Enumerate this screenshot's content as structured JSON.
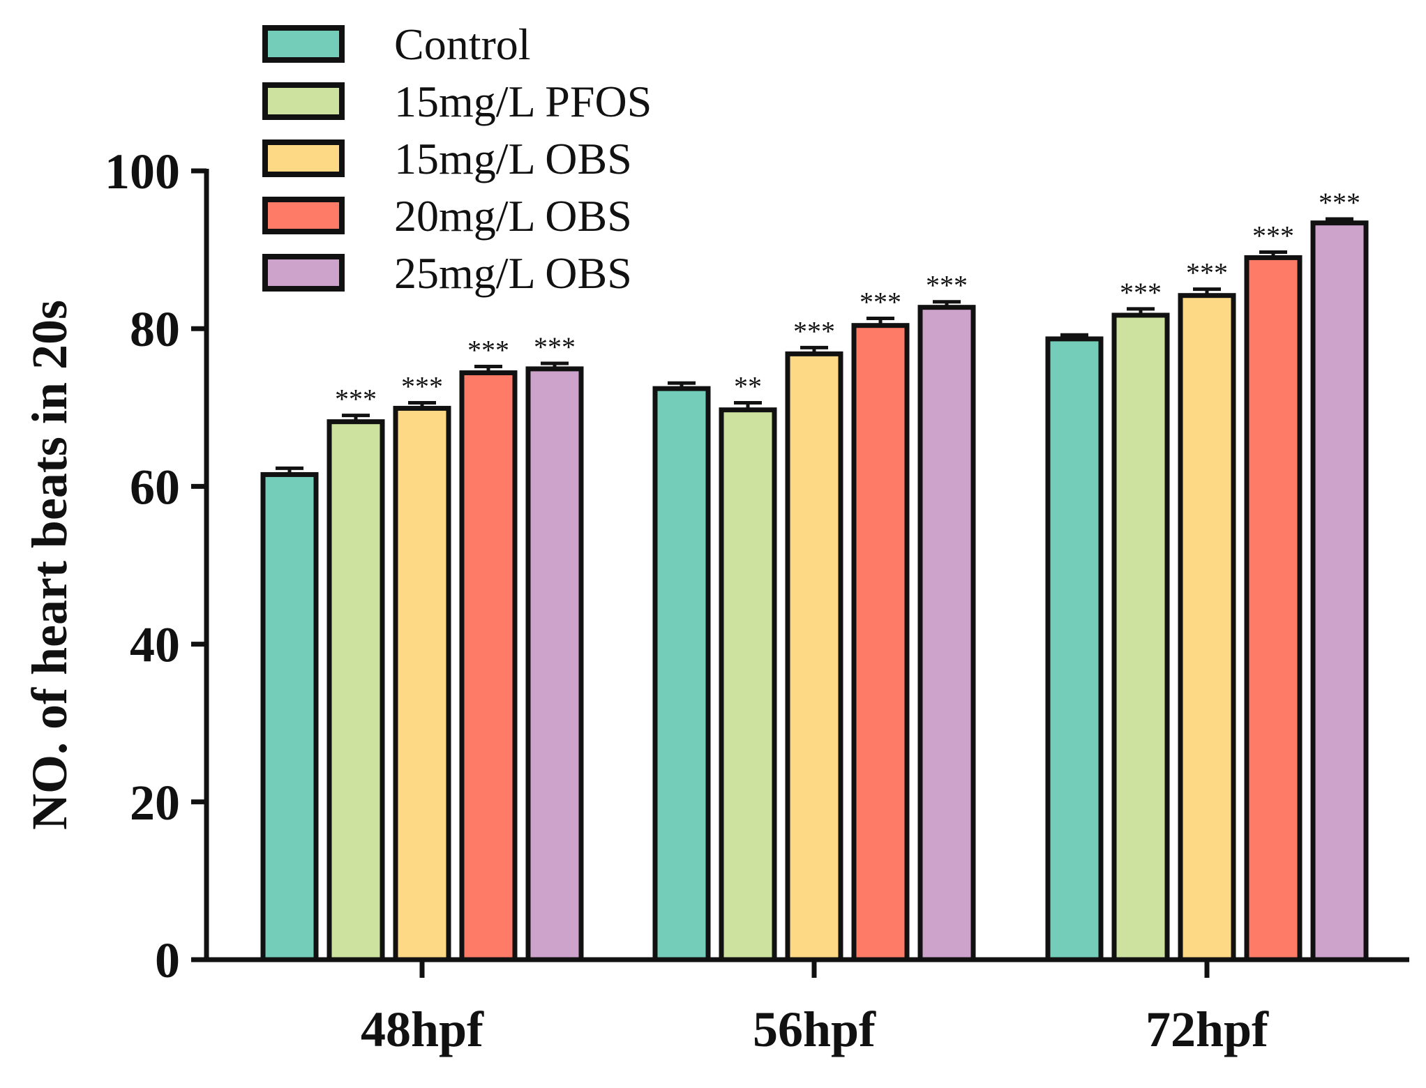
{
  "chart_data": {
    "type": "bar",
    "title": "",
    "xlabel": "",
    "ylabel": "NO. of heart beats in 20s",
    "ylim": [
      0,
      100
    ],
    "yticks": [
      0,
      20,
      40,
      60,
      80,
      100
    ],
    "grid": false,
    "legend_position": "top-left",
    "categories": [
      "48hpf",
      "56hpf",
      "72hpf"
    ],
    "series": [
      {
        "name": "Control",
        "color": "#74CDB8",
        "values": [
          61.5,
          72.4,
          78.7
        ],
        "errors": [
          0.8,
          0.7,
          0.5
        ],
        "significance": [
          "",
          "",
          ""
        ]
      },
      {
        "name": "15mg/L PFOS",
        "color": "#CDE29F",
        "values": [
          68.2,
          69.7,
          81.7
        ],
        "errors": [
          0.8,
          0.9,
          0.8
        ],
        "significance": [
          "***",
          "**",
          "***"
        ]
      },
      {
        "name": "15mg/L OBS",
        "color": "#FDD885",
        "values": [
          69.9,
          76.8,
          84.2
        ],
        "errors": [
          0.7,
          0.8,
          0.8
        ],
        "significance": [
          "***",
          "***",
          "***"
        ]
      },
      {
        "name": "20mg/L OBS",
        "color": "#FE7B68",
        "values": [
          74.4,
          80.4,
          89.0
        ],
        "errors": [
          0.8,
          0.9,
          0.7
        ],
        "significance": [
          "***",
          "***",
          "***"
        ]
      },
      {
        "name": "25mg/L OBS",
        "color": "#CEA3CB",
        "values": [
          74.9,
          82.7,
          93.4
        ],
        "errors": [
          0.7,
          0.7,
          0.5
        ],
        "significance": [
          "***",
          "***",
          "***"
        ]
      }
    ]
  }
}
